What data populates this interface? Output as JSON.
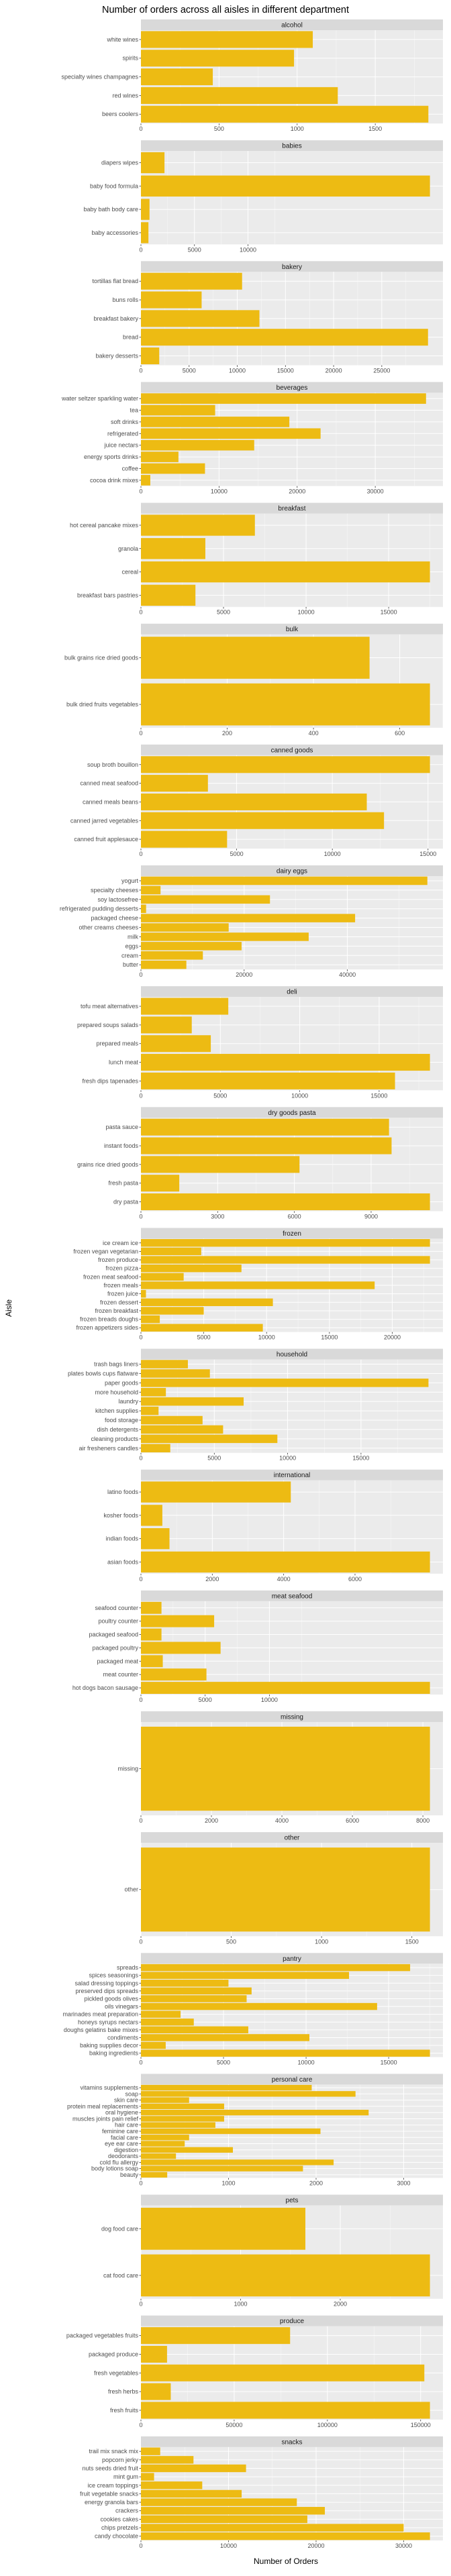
{
  "title": "Number of orders across all aisles in different department",
  "xlabel": "Number of Orders",
  "ylabel": "Aisle",
  "colors": {
    "bar": "#EDBB13",
    "panel_background": "#EBEBEB",
    "strip_background": "#D9D9D9",
    "grid_major": "#FFFFFF"
  },
  "chart_data": {
    "type": "bar",
    "orientation": "horizontal",
    "facet": "department",
    "grid": true,
    "panels": [
      {
        "department": "alcohol",
        "categories": [
          "white wines",
          "spirits",
          "specialty wines champagnes",
          "red wines",
          "beers coolers"
        ],
        "values": [
          1100,
          980,
          460,
          1260,
          1840
        ],
        "xlim": [
          0,
          1850
        ],
        "ticks": [
          0,
          500,
          1000,
          1500
        ]
      },
      {
        "department": "babies",
        "categories": [
          "diapers wipes",
          "baby food formula",
          "baby bath body care",
          "baby accessories"
        ],
        "values": [
          2200,
          27000,
          800,
          700
        ],
        "xlim": [
          0,
          27000
        ],
        "ticks": [
          0,
          5000,
          10000
        ]
      },
      {
        "department": "bakery",
        "categories": [
          "tortillas flat bread",
          "buns rolls",
          "breakfast bakery",
          "bread",
          "bakery desserts"
        ],
        "values": [
          10500,
          6300,
          12300,
          29800,
          1900
        ],
        "xlim": [
          0,
          30000
        ],
        "ticks": [
          0,
          5000,
          10000,
          15000,
          20000,
          25000
        ]
      },
      {
        "department": "beverages",
        "categories": [
          "water seltzer sparkling water",
          "tea",
          "soft drinks",
          "refrigerated",
          "juice nectars",
          "energy sports drinks",
          "coffee",
          "cocoa drink mixes"
        ],
        "values": [
          36500,
          9500,
          19000,
          23000,
          14500,
          4800,
          8200,
          1200
        ],
        "xlim": [
          0,
          37000
        ],
        "ticks": [
          0,
          10000,
          20000,
          30000
        ]
      },
      {
        "department": "breakfast",
        "categories": [
          "hot cereal pancake mixes",
          "granola",
          "cereal",
          "breakfast bars pastries"
        ],
        "values": [
          6900,
          3900,
          17500,
          3300
        ],
        "xlim": [
          0,
          17500
        ],
        "ticks": [
          0,
          5000,
          10000,
          15000
        ]
      },
      {
        "department": "bulk",
        "categories": [
          "bulk grains rice dried goods",
          "bulk dried fruits vegetables"
        ],
        "values": [
          530,
          670
        ],
        "xlim": [
          0,
          670
        ],
        "ticks": [
          0,
          200,
          400,
          600
        ]
      },
      {
        "department": "canned goods",
        "categories": [
          "soup broth bouillon",
          "canned meat seafood",
          "canned meals beans",
          "canned jarred vegetables",
          "canned fruit applesauce"
        ],
        "values": [
          15100,
          3500,
          11800,
          12700,
          4500
        ],
        "xlim": [
          0,
          15100
        ],
        "ticks": [
          0,
          5000,
          10000,
          15000
        ]
      },
      {
        "department": "dairy eggs",
        "categories": [
          "yogurt",
          "specialty cheeses",
          "soy lactosefree",
          "refrigerated pudding desserts",
          "packaged cheese",
          "other creams cheeses",
          "milk",
          "eggs",
          "cream",
          "butter"
        ],
        "values": [
          55500,
          3800,
          25000,
          1000,
          41500,
          17000,
          32500,
          19500,
          12000,
          8800
        ],
        "xlim": [
          0,
          56000
        ],
        "ticks": [
          0,
          20000,
          40000
        ]
      },
      {
        "department": "deli",
        "categories": [
          "tofu meat alternatives",
          "prepared soups salads",
          "prepared meals",
          "lunch meat",
          "fresh dips tapenades"
        ],
        "values": [
          5500,
          3200,
          4400,
          18200,
          16000
        ],
        "xlim": [
          0,
          18200
        ],
        "ticks": [
          0,
          5000,
          10000,
          15000
        ]
      },
      {
        "department": "dry goods pasta",
        "categories": [
          "pasta sauce",
          "instant foods",
          "grains rice dried goods",
          "fresh pasta",
          "dry pasta"
        ],
        "values": [
          9700,
          9800,
          6200,
          1500,
          11300
        ],
        "xlim": [
          0,
          11300
        ],
        "ticks": [
          0,
          3000,
          6000,
          9000
        ]
      },
      {
        "department": "frozen",
        "categories": [
          "ice cream ice",
          "frozen vegan vegetarian",
          "frozen produce",
          "frozen pizza",
          "frozen meat seafood",
          "frozen meals",
          "frozen juice",
          "frozen dessert",
          "frozen breakfast",
          "frozen breads doughs",
          "frozen appetizers sides"
        ],
        "values": [
          23000,
          4800,
          23000,
          8000,
          3400,
          18600,
          400,
          10500,
          5000,
          1500,
          9700
        ],
        "xlim": [
          0,
          23000
        ],
        "ticks": [
          0,
          5000,
          10000,
          15000,
          20000
        ]
      },
      {
        "department": "household",
        "categories": [
          "trash bags liners",
          "plates bowls cups flatware",
          "paper goods",
          "more household",
          "laundry",
          "kitchen supplies",
          "food storage",
          "dish detergents",
          "cleaning products",
          "air fresheners candles"
        ],
        "values": [
          3200,
          4700,
          19600,
          1700,
          7000,
          1200,
          4200,
          5600,
          9300,
          2000
        ],
        "xlim": [
          0,
          19700
        ],
        "ticks": [
          0,
          5000,
          10000,
          15000
        ]
      },
      {
        "department": "international",
        "categories": [
          "latino foods",
          "kosher foods",
          "indian foods",
          "asian foods"
        ],
        "values": [
          4200,
          600,
          800,
          8100
        ],
        "xlim": [
          0,
          8100
        ],
        "ticks": [
          0,
          2000,
          4000,
          6000
        ]
      },
      {
        "department": "meat seafood",
        "categories": [
          "seafood counter",
          "poultry counter",
          "packaged seafood",
          "packaged poultry",
          "packaged meat",
          "meat counter",
          "hot dogs bacon sausage"
        ],
        "values": [
          1600,
          5700,
          1600,
          6200,
          1700,
          5100,
          22500
        ],
        "xlim": [
          0,
          22500
        ],
        "ticks": [
          0,
          5000,
          10000
        ]
      },
      {
        "department": "missing",
        "categories": [
          "missing"
        ],
        "values": [
          8200
        ],
        "xlim": [
          0,
          8200
        ],
        "ticks": [
          0,
          2000,
          4000,
          6000,
          8000
        ]
      },
      {
        "department": "other",
        "categories": [
          "other"
        ],
        "values": [
          1600
        ],
        "xlim": [
          0,
          1600
        ],
        "ticks": [
          0,
          500,
          1000,
          1500
        ]
      },
      {
        "department": "pantry",
        "categories": [
          "spreads",
          "spices seasonings",
          "salad dressing toppings",
          "preserved dips spreads",
          "pickled goods olives",
          "oils vinegars",
          "marinades meat preparation",
          "honeys syrups nectars",
          "doughs gelatins bake mixes",
          "condiments",
          "baking supplies decor",
          "baking ingredients"
        ],
        "values": [
          16300,
          12600,
          5300,
          6700,
          6400,
          14300,
          2400,
          3200,
          6500,
          10200,
          1500,
          17500
        ],
        "xlim": [
          0,
          17500
        ],
        "ticks": [
          0,
          5000,
          10000,
          15000
        ]
      },
      {
        "department": "personal care",
        "categories": [
          "vitamins supplements",
          "soap",
          "skin care",
          "protein meal replacements",
          "oral hygiene",
          "muscles joints pain relief",
          "hair care",
          "feminine care",
          "facial care",
          "eye ear care",
          "digestion",
          "deodorants",
          "cold flu allergy",
          "body lotions soap",
          "beauty"
        ],
        "values": [
          1950,
          2450,
          550,
          950,
          2600,
          950,
          850,
          2050,
          550,
          500,
          1050,
          400,
          2200,
          1850,
          300
        ],
        "xlim": [
          0,
          3300
        ],
        "ticks": [
          0,
          1000,
          2000,
          3000
        ]
      },
      {
        "department": "pets",
        "categories": [
          "dog food care",
          "cat food care"
        ],
        "values": [
          1650,
          2900
        ],
        "xlim": [
          0,
          2900
        ],
        "ticks": [
          0,
          1000,
          2000
        ]
      },
      {
        "department": "produce",
        "categories": [
          "packaged vegetables fruits",
          "packaged produce",
          "fresh vegetables",
          "fresh herbs",
          "fresh fruits"
        ],
        "values": [
          80000,
          14000,
          152000,
          16000,
          155000
        ],
        "xlim": [
          0,
          155000
        ],
        "ticks": [
          0,
          50000,
          100000,
          150000
        ]
      },
      {
        "department": "snacks",
        "categories": [
          "trail mix snack mix",
          "popcorn jerky",
          "nuts seeds dried fruit",
          "mint gum",
          "ice cream toppings",
          "fruit vegetable snacks",
          "energy granola bars",
          "crackers",
          "cookies cakes",
          "chips pretzels",
          "candy chocolate"
        ],
        "values": [
          2200,
          6000,
          12000,
          1500,
          7000,
          11500,
          17800,
          21000,
          19000,
          30000,
          33000
        ],
        "xlim": [
          0,
          33000
        ],
        "ticks": [
          0,
          10000,
          20000,
          30000
        ]
      }
    ]
  }
}
